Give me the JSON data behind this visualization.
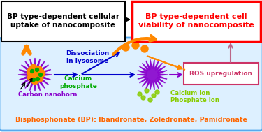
{
  "bg_outer": "#ffffff",
  "bg_inner": "#ddf0ff",
  "border_inner": "#55aaee",
  "box1_text": "BP type-dependent cellular\nuptake of nanocomposite",
  "box1_bg": "#ffffff",
  "box1_border": "#000000",
  "box2_text": "BP type-dependent cell\nviability of nanocomposite",
  "box2_bg": "#ffffff",
  "box2_border": "#ff0000",
  "box2_color": "#ff0000",
  "ros_text": "ROS upregulation",
  "ros_border": "#cc3366",
  "ros_color": "#cc3366",
  "dissociation_text": "Dissociation\nin lysosome",
  "dissociation_color": "#0000cc",
  "calcium_phosphate_text": "Calcium\nphosphate",
  "calcium_phosphate_color": "#00aa00",
  "carbon_nanohorn_text": "Carbon nanohorn",
  "carbon_nanohorn_color": "#8800cc",
  "calcium_ion_text": "Calcium ion",
  "phosphate_ion_text": "Phosphate ion",
  "ions_color": "#88cc00",
  "bp_text": "Bisphosphonate (BP): Ibandronate, Zoledronate, Pamidronate",
  "bp_color": "#ff6600",
  "orange_color": "#ff8800",
  "purple_color": "#8800cc",
  "blue_color": "#0000cc",
  "pink_color": "#bb6688",
  "green_color": "#00aa00"
}
